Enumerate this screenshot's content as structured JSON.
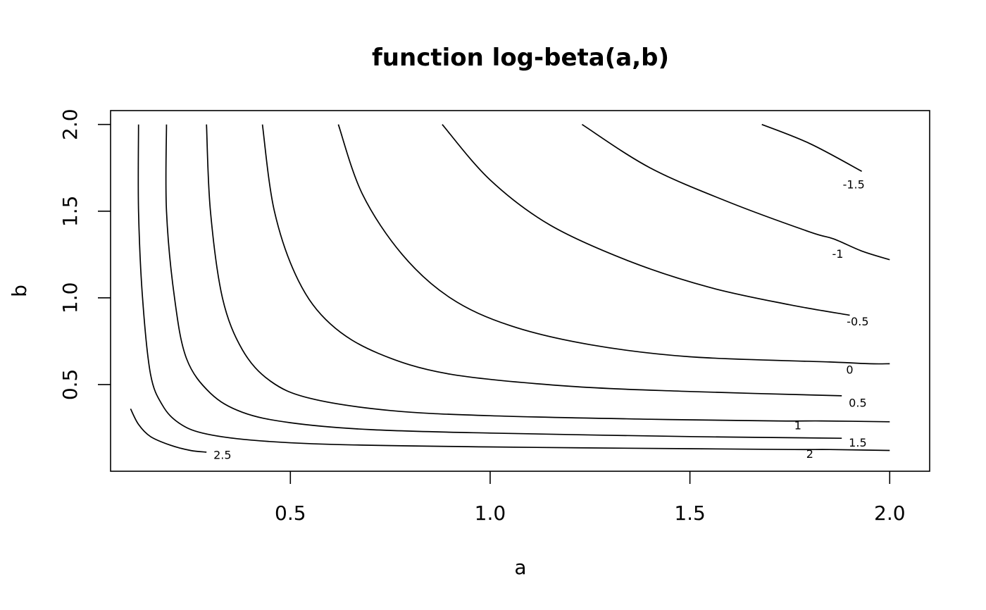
{
  "chart_data": {
    "type": "contour",
    "title": "function log-beta(a,b)",
    "xlabel": "a",
    "ylabel": "b",
    "xlim": [
      0.05,
      2.1
    ],
    "ylim": [
      0.0,
      2.08
    ],
    "xticks": [
      0.5,
      1.0,
      1.5,
      2.0
    ],
    "xtick_labels": [
      "0.5",
      "1.0",
      "1.5",
      "2.0"
    ],
    "yticks": [
      0.5,
      1.0,
      1.5,
      2.0
    ],
    "ytick_labels": [
      "0.5",
      "1.0",
      "1.5",
      "2.0"
    ],
    "grid": false,
    "contours": [
      {
        "level": 2.5,
        "label": "2.5",
        "label_at": [
          0.33,
          0.09
        ],
        "points": [
          [
            0.1,
            0.36
          ],
          [
            0.12,
            0.27
          ],
          [
            0.15,
            0.2
          ],
          [
            0.2,
            0.15
          ],
          [
            0.25,
            0.12
          ],
          [
            0.29,
            0.11
          ]
        ]
      },
      {
        "level": 2,
        "label": "2",
        "label_at": [
          1.8,
          0.095
        ],
        "points": [
          [
            0.12,
            2.0
          ],
          [
            0.12,
            1.5
          ],
          [
            0.13,
            1.0
          ],
          [
            0.15,
            0.56
          ],
          [
            0.18,
            0.38
          ],
          [
            0.22,
            0.28
          ],
          [
            0.28,
            0.22
          ],
          [
            0.4,
            0.18
          ],
          [
            0.6,
            0.155
          ],
          [
            1.0,
            0.14
          ],
          [
            1.5,
            0.13
          ],
          [
            1.76,
            0.125
          ],
          [
            1.85,
            0.125
          ],
          [
            2.0,
            0.12
          ]
        ]
      },
      {
        "level": 1.5,
        "label": "1.5",
        "label_at": [
          1.92,
          0.16
        ],
        "points": [
          [
            0.19,
            2.0
          ],
          [
            0.19,
            1.5
          ],
          [
            0.21,
            1.0
          ],
          [
            0.24,
            0.65
          ],
          [
            0.3,
            0.45
          ],
          [
            0.38,
            0.34
          ],
          [
            0.5,
            0.28
          ],
          [
            0.7,
            0.24
          ],
          [
            1.0,
            0.22
          ],
          [
            1.5,
            0.2
          ],
          [
            1.88,
            0.19
          ]
        ]
      },
      {
        "level": 1,
        "label": "1",
        "label_at": [
          1.77,
          0.26
        ],
        "points": [
          [
            0.29,
            2.0
          ],
          [
            0.3,
            1.5
          ],
          [
            0.33,
            1.0
          ],
          [
            0.38,
            0.7
          ],
          [
            0.45,
            0.52
          ],
          [
            0.55,
            0.42
          ],
          [
            0.75,
            0.35
          ],
          [
            1.0,
            0.32
          ],
          [
            1.4,
            0.3
          ],
          [
            1.72,
            0.29
          ],
          [
            1.83,
            0.29
          ],
          [
            2.0,
            0.285
          ]
        ]
      },
      {
        "level": 0.5,
        "label": "0.5",
        "label_at": [
          1.92,
          0.39
        ],
        "points": [
          [
            0.43,
            2.0
          ],
          [
            0.46,
            1.5
          ],
          [
            0.52,
            1.1
          ],
          [
            0.6,
            0.85
          ],
          [
            0.72,
            0.68
          ],
          [
            0.9,
            0.56
          ],
          [
            1.2,
            0.49
          ],
          [
            1.5,
            0.46
          ],
          [
            1.88,
            0.435
          ]
        ]
      },
      {
        "level": 0,
        "label": "0",
        "label_at": [
          1.9,
          0.58
        ],
        "points": [
          [
            0.62,
            2.0
          ],
          [
            0.68,
            1.6
          ],
          [
            0.78,
            1.25
          ],
          [
            0.9,
            1.0
          ],
          [
            1.05,
            0.84
          ],
          [
            1.25,
            0.73
          ],
          [
            1.5,
            0.66
          ],
          [
            1.85,
            0.63
          ],
          [
            1.95,
            0.62
          ],
          [
            2.0,
            0.62
          ]
        ]
      },
      {
        "level": -0.5,
        "label": "-0.5",
        "label_at": [
          1.92,
          0.86
        ],
        "points": [
          [
            0.88,
            2.0
          ],
          [
            1.0,
            1.68
          ],
          [
            1.15,
            1.42
          ],
          [
            1.35,
            1.21
          ],
          [
            1.55,
            1.06
          ],
          [
            1.75,
            0.96
          ],
          [
            1.9,
            0.9
          ]
        ]
      },
      {
        "level": -1,
        "label": "-1",
        "label_at": [
          1.87,
          1.25
        ],
        "points": [
          [
            1.23,
            2.0
          ],
          [
            1.4,
            1.75
          ],
          [
            1.6,
            1.55
          ],
          [
            1.8,
            1.38
          ],
          [
            1.86,
            1.34
          ],
          [
            1.93,
            1.27
          ],
          [
            2.0,
            1.22
          ]
        ]
      },
      {
        "level": -1.5,
        "label": "-1.5",
        "label_at": [
          1.91,
          1.65
        ],
        "points": [
          [
            1.68,
            2.0
          ],
          [
            1.8,
            1.89
          ],
          [
            1.93,
            1.73
          ]
        ]
      }
    ]
  }
}
